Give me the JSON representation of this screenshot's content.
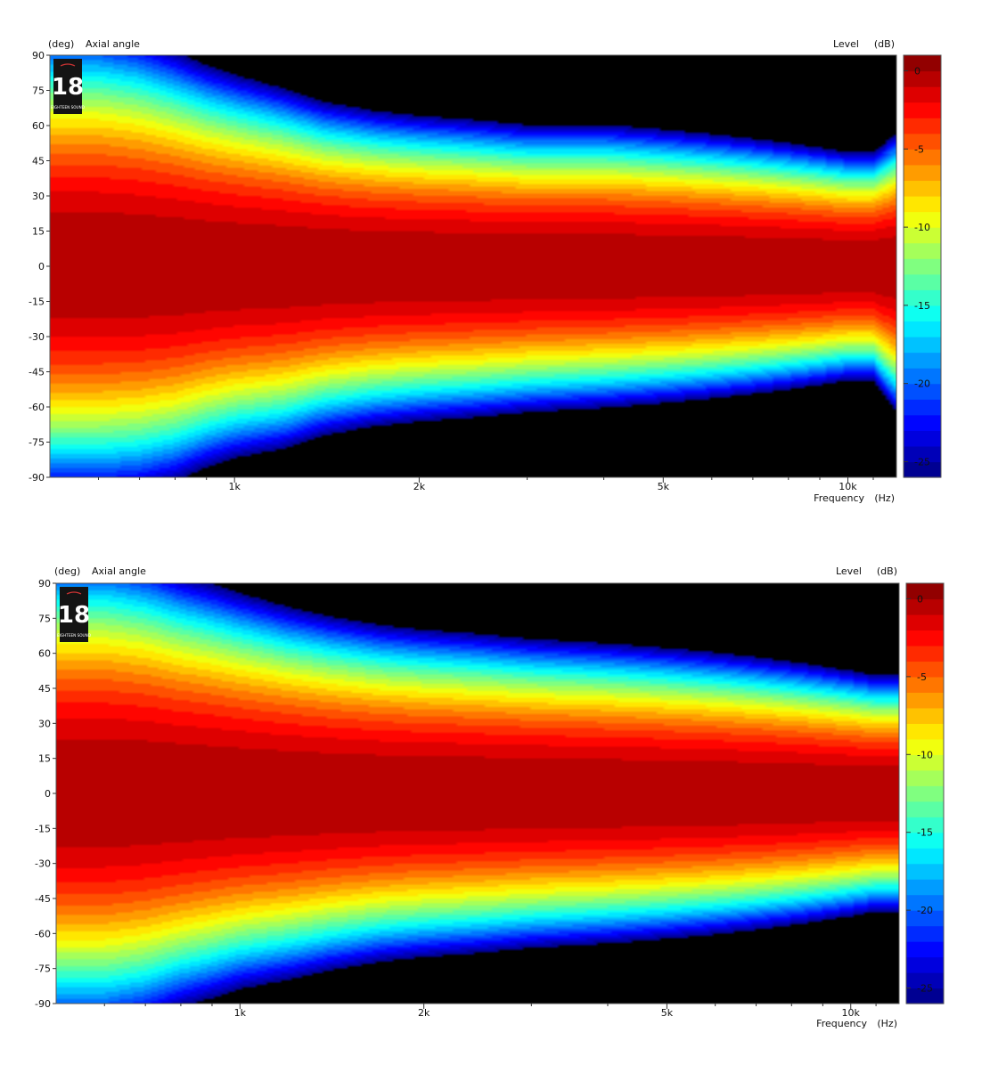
{
  "chart_data": [
    {
      "type": "heatmap",
      "title": "",
      "y_unit": "(deg)",
      "ylabel": "Axial angle",
      "colorbar_label": "Level",
      "colorbar_unit": "(dB)",
      "xlabel": "Frequency",
      "x_unit": "(Hz)",
      "x_scale": "log",
      "xlim": [
        500,
        12000
      ],
      "ylim": [
        -90,
        90
      ],
      "clim": [
        -26,
        1
      ],
      "x_ticks": [
        {
          "value": 1000,
          "label": "1k"
        },
        {
          "value": 2000,
          "label": "2k"
        },
        {
          "value": 5000,
          "label": "5k"
        },
        {
          "value": 10000,
          "label": "10k"
        }
      ],
      "y_ticks": [
        {
          "value": 90,
          "label": "90"
        },
        {
          "value": 75,
          "label": "75"
        },
        {
          "value": 60,
          "label": "60"
        },
        {
          "value": 45,
          "label": "45"
        },
        {
          "value": 30,
          "label": "30"
        },
        {
          "value": 15,
          "label": "15"
        },
        {
          "value": 0,
          "label": "0"
        },
        {
          "value": -15,
          "label": "-15"
        },
        {
          "value": -30,
          "label": "-30"
        },
        {
          "value": -45,
          "label": "-45"
        },
        {
          "value": -60,
          "label": "-60"
        },
        {
          "value": -75,
          "label": "-75"
        },
        {
          "value": -90,
          "label": "-90"
        }
      ],
      "colorbar_ticks": [
        {
          "value": 0,
          "label": "0"
        },
        {
          "value": -5,
          "label": "-5"
        },
        {
          "value": -10,
          "label": "-10"
        },
        {
          "value": -15,
          "label": "-15"
        },
        {
          "value": -20,
          "label": "-20"
        },
        {
          "value": -25,
          "label": "-25"
        }
      ],
      "beamwidth_-6dB": {
        "frequency": [
          600,
          700,
          800,
          900,
          1000,
          1200,
          1400,
          1700,
          2000,
          2500,
          3000,
          4000,
          5000,
          6000,
          7000,
          8000,
          9000,
          10000,
          11000,
          12000
        ],
        "half_angle_upper": [
          52,
          50,
          47,
          44,
          42,
          39,
          36,
          34,
          33,
          32,
          31,
          31,
          30,
          29,
          28,
          27,
          26,
          25,
          25,
          29
        ],
        "half_angle_lower": [
          50,
          49,
          47,
          44,
          42,
          40,
          37,
          35,
          34,
          33,
          32,
          31,
          30,
          29,
          28,
          27,
          26,
          25,
          25,
          32
        ]
      },
      "brand_logo": {
        "text": "18",
        "subtext": "EIGHTEEN SOUND"
      }
    },
    {
      "type": "heatmap",
      "title": "",
      "y_unit": "(deg)",
      "ylabel": "Axial angle",
      "colorbar_label": "Level",
      "colorbar_unit": "(dB)",
      "xlabel": "Frequency",
      "x_unit": "(Hz)",
      "x_scale": "log",
      "xlim": [
        500,
        12000
      ],
      "ylim": [
        -90,
        90
      ],
      "clim": [
        -26,
        1
      ],
      "x_ticks": [
        {
          "value": 1000,
          "label": "1k"
        },
        {
          "value": 2000,
          "label": "2k"
        },
        {
          "value": 5000,
          "label": "5k"
        },
        {
          "value": 10000,
          "label": "10k"
        }
      ],
      "y_ticks": [
        {
          "value": 90,
          "label": "90"
        },
        {
          "value": 75,
          "label": "75"
        },
        {
          "value": 60,
          "label": "60"
        },
        {
          "value": 45,
          "label": "45"
        },
        {
          "value": 30,
          "label": "30"
        },
        {
          "value": 15,
          "label": "15"
        },
        {
          "value": 0,
          "label": "0"
        },
        {
          "value": -15,
          "label": "-15"
        },
        {
          "value": -30,
          "label": "-30"
        },
        {
          "value": -45,
          "label": "-45"
        },
        {
          "value": -60,
          "label": "-60"
        },
        {
          "value": -75,
          "label": "-75"
        },
        {
          "value": -90,
          "label": "-90"
        }
      ],
      "colorbar_ticks": [
        {
          "value": 0,
          "label": "0"
        },
        {
          "value": -5,
          "label": "-5"
        },
        {
          "value": -10,
          "label": "-10"
        },
        {
          "value": -15,
          "label": "-15"
        },
        {
          "value": -20,
          "label": "-20"
        },
        {
          "value": -25,
          "label": "-25"
        }
      ],
      "beamwidth_-6dB": {
        "frequency": [
          600,
          700,
          800,
          900,
          1000,
          1200,
          1400,
          1700,
          2000,
          2500,
          3000,
          4000,
          5000,
          6000,
          7000,
          8000,
          9000,
          10000,
          11000,
          12000
        ],
        "half_angle_upper": [
          53,
          51,
          48,
          46,
          44,
          41,
          39,
          37,
          36,
          35,
          34,
          33,
          32,
          31,
          30,
          29,
          28,
          27,
          26,
          26
        ],
        "half_angle_lower": [
          52,
          50,
          47,
          45,
          43,
          41,
          39,
          37,
          36,
          35,
          34,
          33,
          32,
          31,
          30,
          29,
          28,
          27,
          26,
          26
        ]
      },
      "brand_logo": {
        "text": "18",
        "subtext": "EIGHTEEN SOUND"
      }
    }
  ]
}
